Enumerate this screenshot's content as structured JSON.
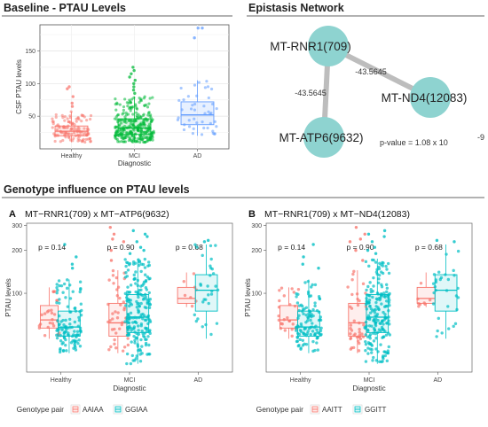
{
  "colors": {
    "salmon": "#F8766D",
    "green": "#00BA38",
    "blue": "#619CFF",
    "teal": "#00BFC4",
    "node": "#8ED3D0",
    "edge": "#BDBDBD",
    "panel_bg": "#EBEBEB"
  },
  "baseline": {
    "title": "Baseline - PTAU Levels",
    "ylabel": "CSF PTAU levels",
    "xlabel": "Diagnostic"
  },
  "network": {
    "title": "Epistasis Network",
    "nodes": [
      {
        "id": "a",
        "label": "MT-RNR1(709)"
      },
      {
        "id": "b",
        "label": "MT-ND4(12083)"
      },
      {
        "id": "c",
        "label": "MT-ATP6(9632)"
      }
    ],
    "edges": [
      {
        "from": "a",
        "to": "c",
        "label": "-43.5645"
      },
      {
        "from": "a",
        "to": "b",
        "label": "-43.5645"
      }
    ],
    "pvalue_text": "p-value = 1.08 x 10",
    "pvalue_exp": "-9"
  },
  "genotype": {
    "title": "Genotype influence on PTAU levels",
    "ylabel": "PTAU levels",
    "xlabel": "Diagnostic",
    "legend_title": "Genotype pair",
    "panels": [
      {
        "letter": "A",
        "title": "MT−RNR1(709) x MT−ATP6(9632)",
        "legend": [
          "AAIAA",
          "GGIAA"
        ]
      },
      {
        "letter": "B",
        "title": "MT−RNR1(709) x MT−ND4(12083)",
        "legend": [
          "AAITT",
          "GGITT"
        ]
      }
    ]
  },
  "chart_data": [
    {
      "type": "box",
      "title": "Baseline - PTAU Levels",
      "xlabel": "Diagnostic",
      "ylabel": "CSF PTAU levels",
      "ylim": [
        0,
        190
      ],
      "yticks": [
        50,
        100,
        150
      ],
      "categories": [
        "Healthy",
        "MCI",
        "AD"
      ],
      "grid": true,
      "series": [
        {
          "category": "Healthy",
          "color": "#F8766D",
          "min": 10,
          "q1": 20,
          "median": 27,
          "q3": 35,
          "max": 57,
          "n": 120,
          "outliers": [
            65,
            70,
            80,
            92,
            95
          ]
        },
        {
          "category": "MCI",
          "color": "#00BA38",
          "min": 10,
          "q1": 22,
          "median": 32,
          "q3": 46,
          "max": 80,
          "n": 300,
          "outliers": [
            85,
            90,
            95,
            100,
            105,
            110,
            115,
            120,
            125
          ]
        },
        {
          "category": "AD",
          "color": "#619CFF",
          "min": 20,
          "q1": 37,
          "median": 52,
          "q3": 72,
          "max": 105,
          "n": 45,
          "outliers": [
            170,
            185,
            185
          ]
        }
      ]
    },
    {
      "type": "box",
      "title": "MT−RNR1(709) x MT−ATP6(9632)",
      "xlabel": "Diagnostic",
      "ylabel": "PTAU levels",
      "ylog": true,
      "ylim": [
        28,
        310
      ],
      "yticks": [
        100,
        200,
        300
      ],
      "categories": [
        "Healthy",
        "MCI",
        "AD"
      ],
      "legend": [
        "AAIAA",
        "GGIAA"
      ],
      "legend_position": "bottom",
      "pvalues": [
        "p = 0.14",
        "p = 0.90",
        "p = 0.68"
      ],
      "series": [
        {
          "category": "Healthy",
          "group": "AAIAA",
          "color": "#F8766D",
          "min": 48,
          "q1": 57,
          "median": 65,
          "q3": 82,
          "max": 110,
          "n": 25
        },
        {
          "category": "Healthy",
          "group": "GGIAA",
          "color": "#00BFC4",
          "min": 38,
          "q1": 50,
          "median": 58,
          "q3": 75,
          "max": 125,
          "n": 110,
          "outliers": [
            150,
            160,
            180,
            220
          ]
        },
        {
          "category": "MCI",
          "group": "AAIAA",
          "color": "#F8766D",
          "min": 38,
          "q1": 50,
          "median": 62,
          "q3": 85,
          "max": 145,
          "n": 40,
          "outliers": [
            170,
            200,
            230,
            240,
            260,
            290
          ]
        },
        {
          "category": "MCI",
          "group": "GGIAA",
          "color": "#00BFC4",
          "min": 32,
          "q1": 53,
          "median": 68,
          "q3": 98,
          "max": 175,
          "n": 200,
          "outliers": [
            190,
            200,
            210,
            230,
            250,
            260,
            275
          ]
        },
        {
          "category": "AD",
          "group": "AAIAA",
          "color": "#F8766D",
          "min": 80,
          "q1": 85,
          "median": 92,
          "q3": 110,
          "max": 140,
          "n": 8
        },
        {
          "category": "AD",
          "group": "GGIAA",
          "color": "#00BFC4",
          "min": 48,
          "q1": 75,
          "median": 105,
          "q3": 135,
          "max": 220,
          "n": 30,
          "outliers": [
            230,
            235
          ]
        }
      ]
    },
    {
      "type": "box",
      "title": "MT−RNR1(709) x MT−ND4(12083)",
      "xlabel": "Diagnostic",
      "ylabel": "PTAU levels",
      "ylog": true,
      "ylim": [
        28,
        310
      ],
      "yticks": [
        100,
        200,
        300
      ],
      "categories": [
        "Healthy",
        "MCI",
        "AD"
      ],
      "legend": [
        "AAITT",
        "GGITT"
      ],
      "legend_position": "bottom",
      "pvalues": [
        "p = 0.14",
        "p = 0.90",
        "p = 0.68"
      ],
      "series": [
        {
          "category": "Healthy",
          "group": "AAITT",
          "color": "#F8766D",
          "min": 48,
          "q1": 57,
          "median": 65,
          "q3": 82,
          "max": 110,
          "n": 25
        },
        {
          "category": "Healthy",
          "group": "GGITT",
          "color": "#00BFC4",
          "min": 38,
          "q1": 50,
          "median": 58,
          "q3": 75,
          "max": 125,
          "n": 110,
          "outliers": [
            150,
            160,
            180,
            220
          ]
        },
        {
          "category": "MCI",
          "group": "AAITT",
          "color": "#F8766D",
          "min": 38,
          "q1": 50,
          "median": 62,
          "q3": 85,
          "max": 145,
          "n": 40,
          "outliers": [
            170,
            200,
            230,
            240,
            260,
            290
          ]
        },
        {
          "category": "MCI",
          "group": "GGITT",
          "color": "#00BFC4",
          "min": 32,
          "q1": 53,
          "median": 68,
          "q3": 98,
          "max": 175,
          "n": 200,
          "outliers": [
            190,
            200,
            210,
            230,
            250,
            260,
            275
          ]
        },
        {
          "category": "AD",
          "group": "AAITT",
          "color": "#F8766D",
          "min": 80,
          "q1": 85,
          "median": 92,
          "q3": 110,
          "max": 140,
          "n": 8
        },
        {
          "category": "AD",
          "group": "GGITT",
          "color": "#00BFC4",
          "min": 48,
          "q1": 75,
          "median": 105,
          "q3": 135,
          "max": 220,
          "n": 30,
          "outliers": [
            230,
            235
          ]
        }
      ]
    }
  ]
}
